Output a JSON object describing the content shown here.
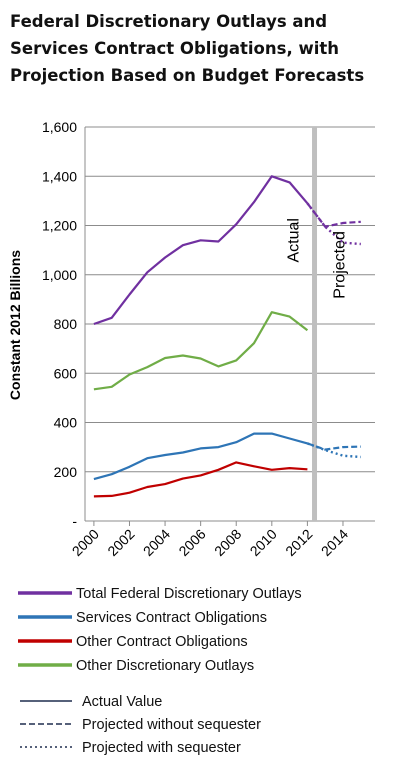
{
  "chart_data": {
    "type": "line",
    "title": [
      "Federal Discretionary Outlays and",
      "Services Contract Obligations, with",
      "Projection Based on Budget Forecasts"
    ],
    "ylabel": "Constant 2012 Billions",
    "xlabel": "",
    "ylim": [
      0,
      1600
    ],
    "y_ticks": [
      0,
      200,
      400,
      600,
      800,
      1000,
      1200,
      1400,
      1600
    ],
    "y_tick_labels": [
      "-",
      "200",
      "400",
      "600",
      "800",
      "1,000",
      "1,200",
      "1,400",
      "1,600"
    ],
    "xlim": [
      1999.5,
      2015.8
    ],
    "x_ticks": [
      2000,
      2002,
      2004,
      2006,
      2008,
      2010,
      2012,
      2014
    ],
    "x_tick_labels": [
      "2000",
      "2002",
      "2004",
      "2006",
      "2008",
      "2010",
      "2012",
      "2014"
    ],
    "grid": "horizontal",
    "divider_year": 2012.4,
    "annotations": {
      "actual": "Actual",
      "projected": "Projected"
    },
    "series": [
      {
        "name": "Total Federal Discretionary Outlays",
        "color": "#7030a0",
        "actual": {
          "x": [
            2000,
            2001,
            2002,
            2003,
            2004,
            2005,
            2006,
            2007,
            2008,
            2009,
            2010,
            2011,
            2012
          ],
          "y": [
            800,
            825,
            920,
            1010,
            1070,
            1120,
            1140,
            1135,
            1205,
            1295,
            1400,
            1375,
            1290
          ]
        },
        "projected_without_sequester": {
          "x": [
            2012,
            2013,
            2014,
            2015
          ],
          "y": [
            1290,
            1195,
            1210,
            1215
          ]
        },
        "projected_with_sequester": {
          "x": [
            2012,
            2013,
            2014,
            2015
          ],
          "y": [
            1290,
            1195,
            1130,
            1125
          ]
        }
      },
      {
        "name": "Services Contract Obligations",
        "color": "#2e75b6",
        "actual": {
          "x": [
            2000,
            2001,
            2002,
            2003,
            2004,
            2005,
            2006,
            2007,
            2008,
            2009,
            2010,
            2011,
            2012
          ],
          "y": [
            170,
            190,
            220,
            255,
            268,
            278,
            295,
            300,
            320,
            355,
            355,
            335,
            315
          ]
        },
        "projected_without_sequester": {
          "x": [
            2012,
            2013,
            2014,
            2015
          ],
          "y": [
            315,
            290,
            300,
            302
          ]
        },
        "projected_with_sequester": {
          "x": [
            2012,
            2013,
            2014,
            2015
          ],
          "y": [
            315,
            288,
            265,
            260
          ]
        }
      },
      {
        "name": "Other Contract Obligations",
        "color": "#c00000",
        "actual": {
          "x": [
            2000,
            2001,
            2002,
            2003,
            2004,
            2005,
            2006,
            2007,
            2008,
            2009,
            2010,
            2011,
            2012
          ],
          "y": [
            100,
            102,
            115,
            138,
            150,
            172,
            185,
            208,
            238,
            222,
            208,
            215,
            210
          ]
        }
      },
      {
        "name": "Other Discretionary Outlays",
        "color": "#70ad47",
        "actual": {
          "x": [
            2000,
            2001,
            2002,
            2003,
            2004,
            2005,
            2006,
            2007,
            2008,
            2009,
            2010,
            2011,
            2012
          ],
          "y": [
            535,
            545,
            595,
            625,
            662,
            672,
            660,
            628,
            652,
            722,
            848,
            830,
            775
          ]
        }
      }
    ],
    "legend": {
      "placement": "bottom",
      "series_entries": [
        "Total Federal Discretionary Outlays",
        "Services Contract Obligations",
        "Other Contract Obligations",
        "Other Discretionary Outlays"
      ],
      "style_entries": [
        {
          "label": "Actual Value",
          "style": "solid"
        },
        {
          "label": "Projected without sequester",
          "style": "dashed"
        },
        {
          "label": "Projected with sequester",
          "style": "dotted"
        }
      ]
    }
  }
}
